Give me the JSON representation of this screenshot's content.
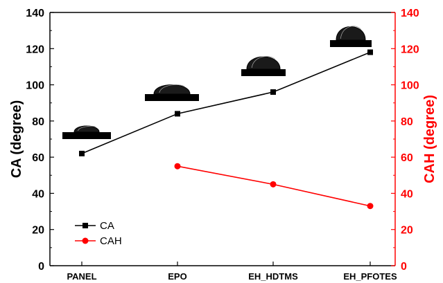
{
  "chart_data": {
    "type": "line",
    "title": "",
    "xlabel": "",
    "categories": [
      "PANEL",
      "EPO",
      "EH_HDTMS",
      "EH_PFOTES"
    ],
    "ylabel_left": "CA (degree)",
    "ylabel_right": "CAH (degree)",
    "ylim_left": [
      0,
      140
    ],
    "ylim_right": [
      0,
      140
    ],
    "yticks_left": [
      0,
      20,
      40,
      60,
      80,
      100,
      120,
      140
    ],
    "yticks_right": [
      0,
      20,
      40,
      60,
      80,
      100,
      120,
      140
    ],
    "grid": false,
    "legend_position": "bottom-left",
    "series": [
      {
        "name": "CA",
        "axis": "left",
        "color": "#000000",
        "marker": "square",
        "values": [
          62,
          84,
          96,
          118
        ]
      },
      {
        "name": "CAH",
        "axis": "right",
        "color": "#ff0000",
        "marker": "circle",
        "values": [
          null,
          55,
          45,
          33
        ]
      }
    ],
    "droplet_images": [
      "PANEL",
      "EPO",
      "EH_HDTMS",
      "EH_PFOTES"
    ],
    "axis_colors": {
      "left": "#000000",
      "right": "#ff0000"
    }
  }
}
